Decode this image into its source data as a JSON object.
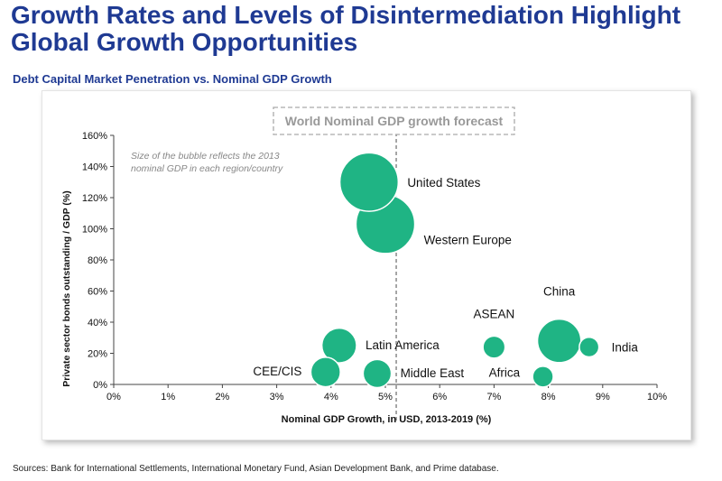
{
  "title_line1": "Growth Rates and Levels of Disintermediation Highlight",
  "title_line2": "Global Growth Opportunities",
  "subtitle": "Debt Capital Market Penetration vs. Nominal GDP Growth",
  "source_note": "Sources: Bank for International Settlements, International Monetary Fund, Asian Development Bank, and Prime database.",
  "colors": {
    "title": "#1f3a93",
    "bubble": "#1fb484",
    "forecast": "#999999"
  },
  "chart_data": {
    "type": "scatter",
    "xlabel": "Nominal GDP Growth, in USD, 2013-2019 (%)",
    "ylabel": "Private sector bonds outstanding / GDP (%)",
    "xlim": [
      0,
      10
    ],
    "ylim": [
      0,
      160
    ],
    "x_ticks": [
      "0%",
      "1%",
      "2%",
      "3%",
      "4%",
      "5%",
      "6%",
      "7%",
      "8%",
      "9%",
      "10%"
    ],
    "y_ticks": [
      "0%",
      "20%",
      "40%",
      "60%",
      "80%",
      "100%",
      "120%",
      "140%",
      "160%"
    ],
    "grid": false,
    "annotation": "Size of the bubble reflects the 2013 nominal GDP in each region/country",
    "forecast_line": {
      "label": "World Nominal GDP growth forecast",
      "x": 5.2
    },
    "points": [
      {
        "label": "United States",
        "x": 4.7,
        "y": 130,
        "size": 16.8
      },
      {
        "label": "Western Europe",
        "x": 5.0,
        "y": 103,
        "size": 17.0
      },
      {
        "label": "Latin America",
        "x": 4.15,
        "y": 25,
        "size": 5.9
      },
      {
        "label": "CEE/CIS",
        "x": 3.9,
        "y": 8,
        "size": 4.3
      },
      {
        "label": "Middle East",
        "x": 4.85,
        "y": 7,
        "size": 3.9
      },
      {
        "label": "ASEAN",
        "x": 7.0,
        "y": 24,
        "size": 2.4
      },
      {
        "label": "China",
        "x": 8.2,
        "y": 28,
        "size": 9.3
      },
      {
        "label": "India",
        "x": 8.75,
        "y": 24,
        "size": 1.9
      },
      {
        "label": "Africa",
        "x": 7.9,
        "y": 5,
        "size": 2.1
      }
    ]
  }
}
